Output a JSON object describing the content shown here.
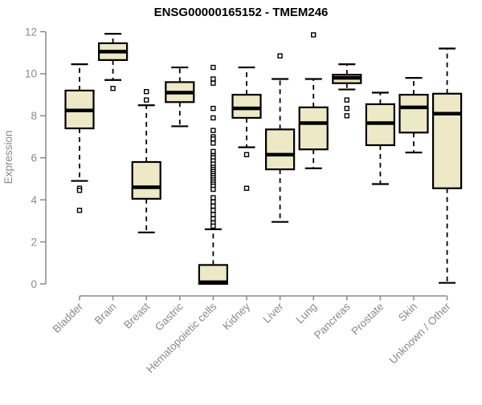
{
  "page": {
    "background": "#FFFFFF"
  },
  "chart_data": {
    "type": "boxplot",
    "title": "ENSG00000165152 - TMEM246",
    "xlabel": "",
    "ylabel": "Expression",
    "ylim": [
      0,
      12
    ],
    "yticks": [
      0,
      2,
      4,
      6,
      8,
      10,
      12
    ],
    "grid": false,
    "legend": "none",
    "categories": [
      "Bladder",
      "Brain",
      "Breast",
      "Gastric",
      "Hematopoietic cells",
      "Kidney",
      "Liver",
      "Lung",
      "Pancreas",
      "Prostate",
      "Skin",
      "Unknown / Other"
    ],
    "boxes": [
      {
        "category": "Bladder",
        "whisker_low": 4.9,
        "q1": 7.4,
        "median": 8.25,
        "q3": 9.2,
        "whisker_high": 10.45,
        "outliers": [
          4.55,
          4.45,
          3.5
        ]
      },
      {
        "category": "Brain",
        "whisker_low": 9.7,
        "q1": 10.65,
        "median": 11.05,
        "q3": 11.45,
        "whisker_high": 11.9,
        "outliers": [
          9.3
        ]
      },
      {
        "category": "Breast",
        "whisker_low": 2.45,
        "q1": 4.05,
        "median": 4.6,
        "q3": 5.8,
        "whisker_high": 8.5,
        "outliers": [
          9.15,
          8.75
        ]
      },
      {
        "category": "Gastric",
        "whisker_low": 7.5,
        "q1": 8.65,
        "median": 9.1,
        "q3": 9.6,
        "whisker_high": 10.3,
        "outliers": []
      },
      {
        "category": "Hematopoietic cells",
        "whisker_low": 0.0,
        "q1": 0.0,
        "median": 0.08,
        "q3": 0.9,
        "whisker_high": 2.6,
        "outliers": [
          10.3,
          9.75,
          9.55,
          8.35,
          7.9,
          7.3,
          7.0,
          6.9,
          6.7,
          6.3,
          6.1,
          6.0,
          5.85,
          5.7,
          5.55,
          5.45,
          5.35,
          5.25,
          5.15,
          5.05,
          4.95,
          4.85,
          4.75,
          4.65,
          4.5,
          4.1,
          3.9,
          3.7,
          3.5,
          3.3,
          3.1,
          2.9,
          2.75
        ]
      },
      {
        "category": "Kidney",
        "whisker_low": 6.5,
        "q1": 7.9,
        "median": 8.35,
        "q3": 9.0,
        "whisker_high": 10.3,
        "outliers": [
          6.15,
          4.55
        ]
      },
      {
        "category": "Liver",
        "whisker_low": 2.95,
        "q1": 5.45,
        "median": 6.15,
        "q3": 7.35,
        "whisker_high": 9.75,
        "outliers": [
          10.85
        ]
      },
      {
        "category": "Lung",
        "whisker_low": 5.5,
        "q1": 6.4,
        "median": 7.65,
        "q3": 8.4,
        "whisker_high": 9.75,
        "outliers": [
          11.85
        ]
      },
      {
        "category": "Pancreas",
        "whisker_low": 9.25,
        "q1": 9.55,
        "median": 9.8,
        "q3": 9.95,
        "whisker_high": 10.45,
        "outliers": [
          8.75,
          8.35,
          8.0
        ]
      },
      {
        "category": "Prostate",
        "whisker_low": 4.75,
        "q1": 6.6,
        "median": 7.65,
        "q3": 8.55,
        "whisker_high": 9.1,
        "outliers": []
      },
      {
        "category": "Skin",
        "whisker_low": 6.25,
        "q1": 7.2,
        "median": 8.4,
        "q3": 9.0,
        "whisker_high": 9.8,
        "outliers": []
      },
      {
        "category": "Unknown / Other",
        "whisker_low": 0.05,
        "q1": 4.55,
        "median": 8.1,
        "q3": 9.05,
        "whisker_high": 11.2,
        "outliers": []
      }
    ],
    "colors": {
      "box_fill": "#EDE8C5",
      "box_border": "#000000",
      "median": "#000000",
      "whisker": "#000000",
      "outlier_fill": "#FFFFFF",
      "outlier_border": "#000000",
      "axis": "#8A8A8A",
      "tick_label": "#8A8A8A",
      "title": "#000000"
    }
  }
}
